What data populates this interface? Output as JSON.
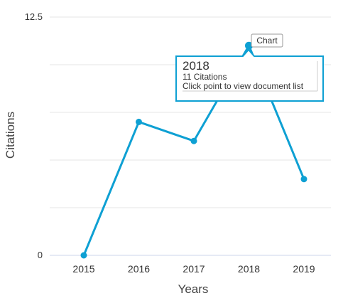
{
  "chart_data": {
    "type": "line",
    "title": "",
    "xlabel": "Years",
    "ylabel": "Citations",
    "x": [
      "2015",
      "2016",
      "2017",
      "2018",
      "2019"
    ],
    "series": [
      {
        "values": [
          0,
          7,
          6,
          11,
          4
        ],
        "color": "#0ea0d3"
      }
    ],
    "ylim": [
      0,
      12.5
    ],
    "y_tick_labels": [
      "0",
      "12.5"
    ],
    "y_ticks": [
      0,
      12.5
    ],
    "grid": true,
    "legend": "none"
  },
  "tooltip": {
    "title": "2018",
    "line1": "11 Citations",
    "line2": "Click point to view document list"
  },
  "chart_label": "Chart"
}
